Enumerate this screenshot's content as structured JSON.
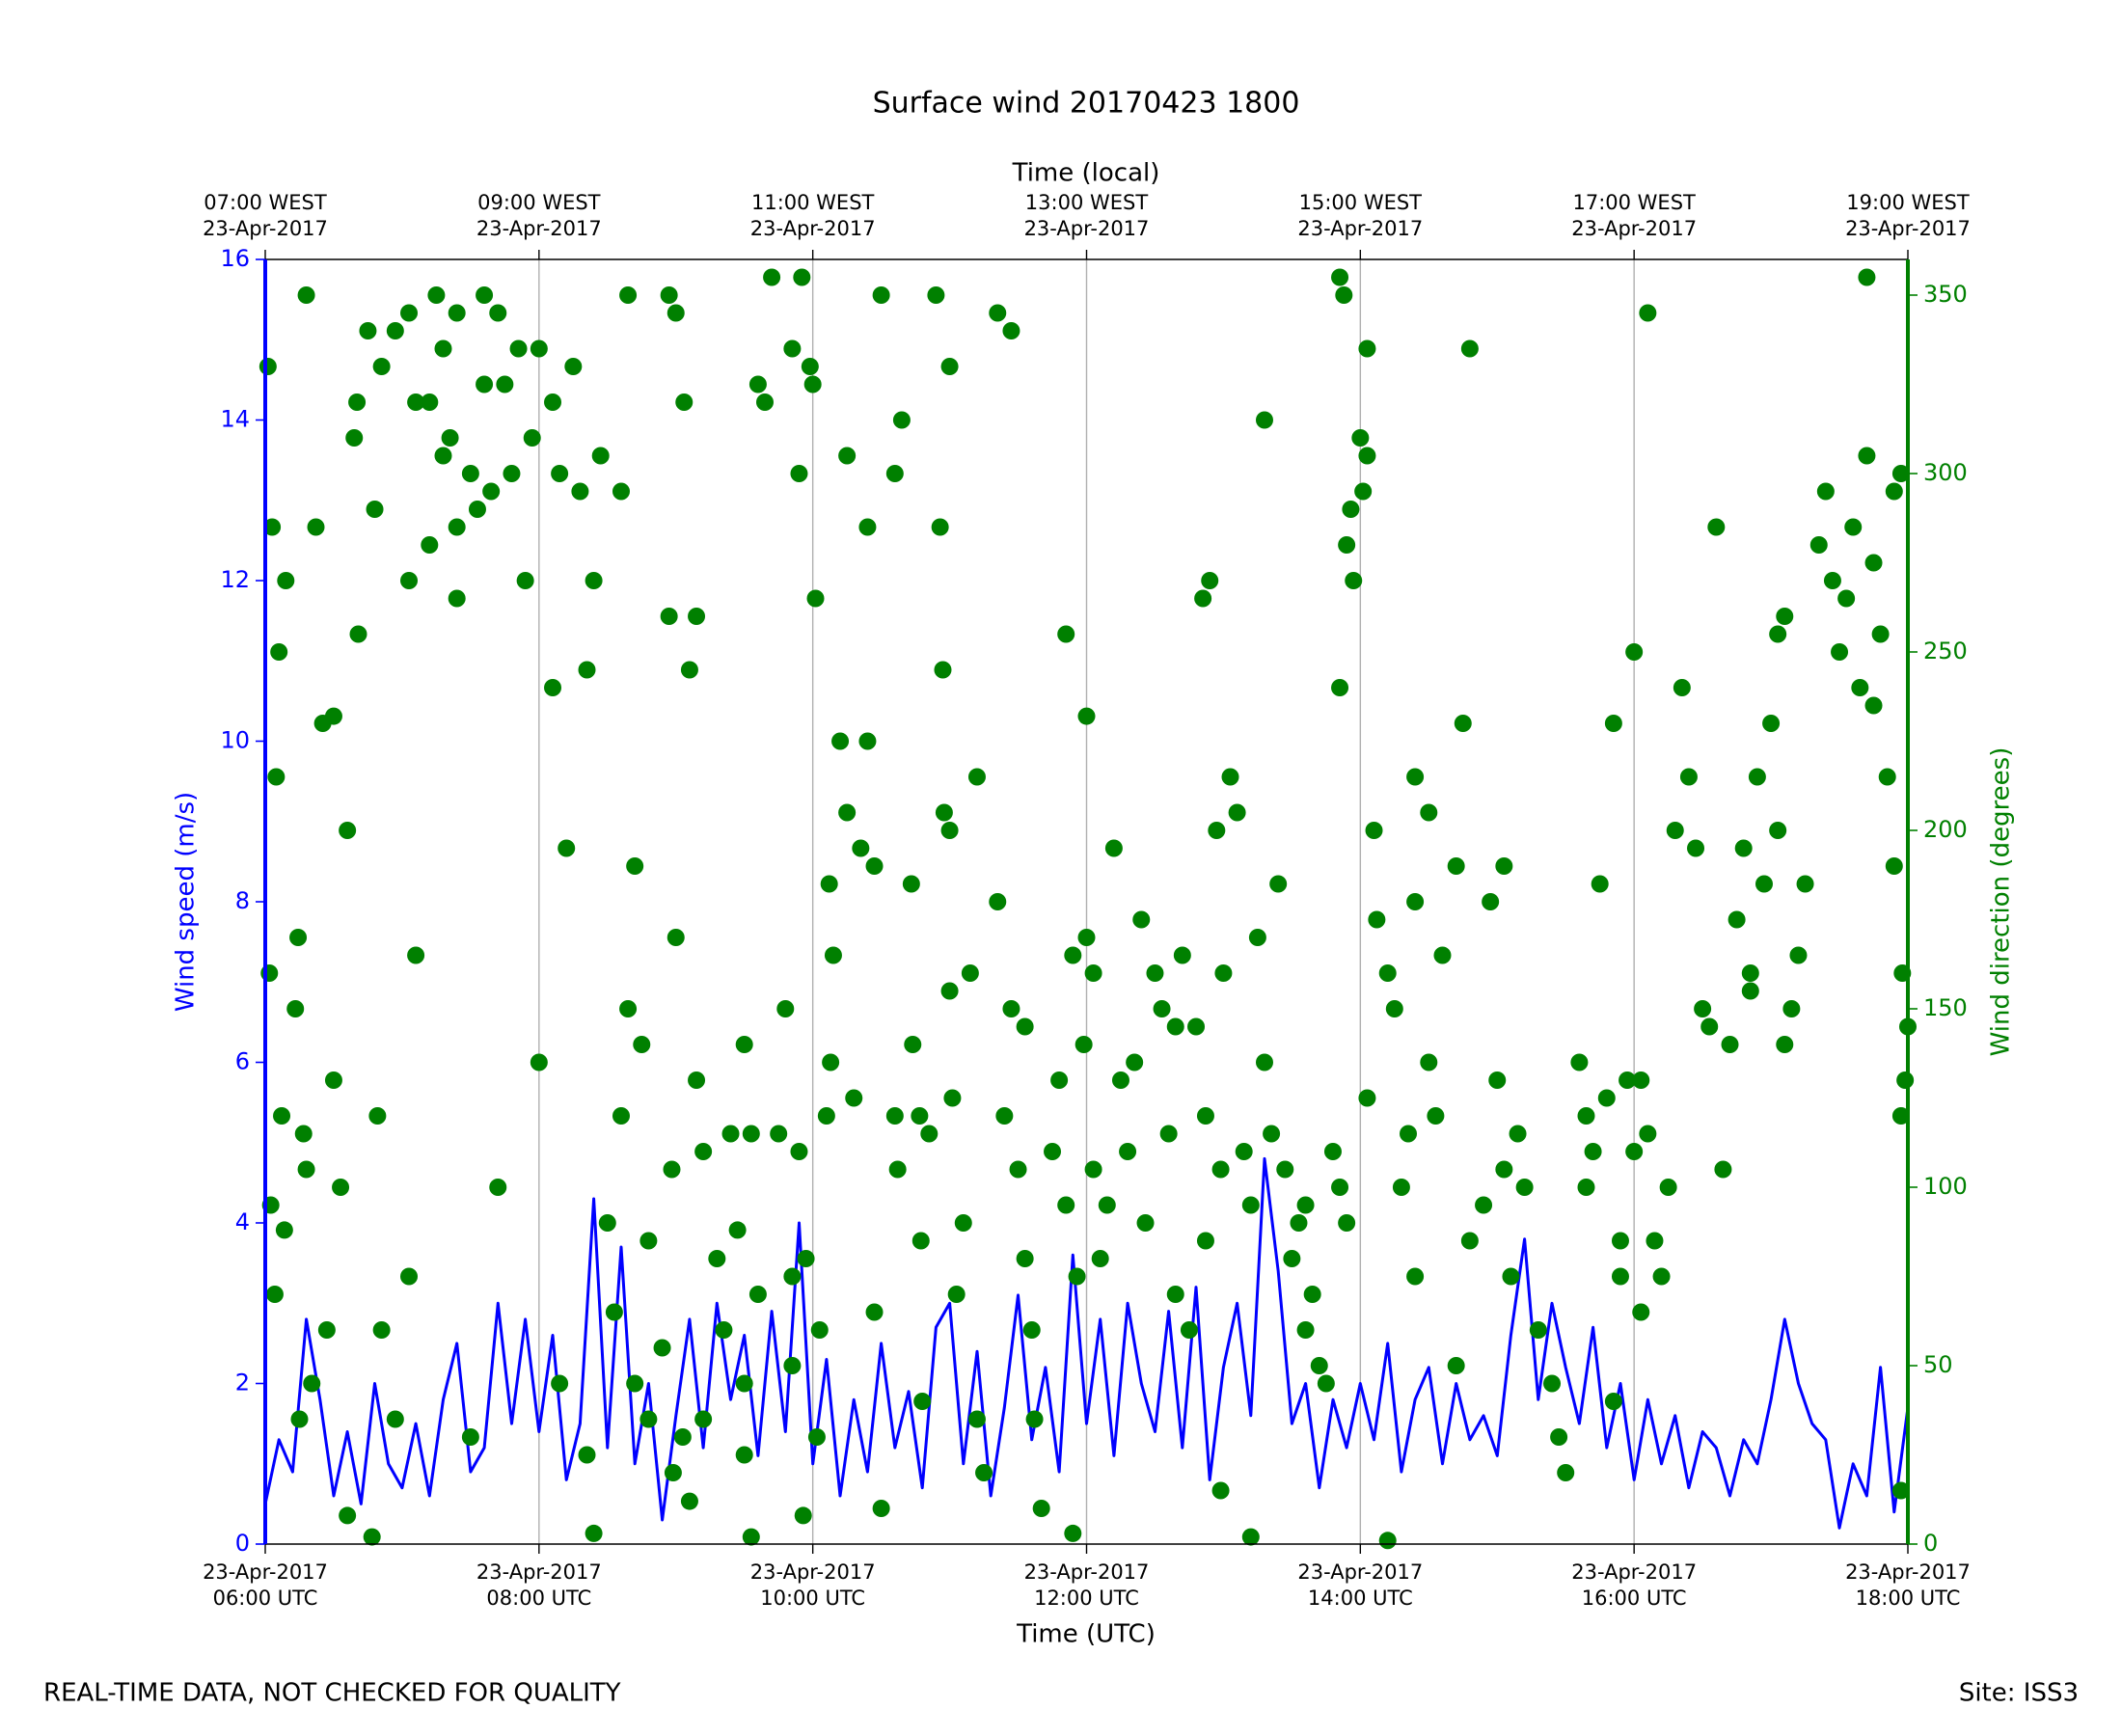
{
  "chart_data": {
    "type": "line",
    "title": "Surface wind 20170423 1800",
    "x2label": "Time (local)",
    "xlabel": "Time (UTC)",
    "ylabel": "Wind speed (m/s)",
    "y2label": "Wind direction (degrees)",
    "footnote": "REAL-TIME DATA, NOT CHECKED FOR QUALITY",
    "site": "Site: ISS3",
    "xlim": [
      6,
      18
    ],
    "xticks": [
      {
        "value": 6,
        "label": [
          "23-Apr-2017",
          "06:00 UTC"
        ]
      },
      {
        "value": 8,
        "label": [
          "23-Apr-2017",
          "08:00 UTC"
        ]
      },
      {
        "value": 10,
        "label": [
          "23-Apr-2017",
          "10:00 UTC"
        ]
      },
      {
        "value": 12,
        "label": [
          "23-Apr-2017",
          "12:00 UTC"
        ]
      },
      {
        "value": 14,
        "label": [
          "23-Apr-2017",
          "14:00 UTC"
        ]
      },
      {
        "value": 16,
        "label": [
          "23-Apr-2017",
          "16:00 UTC"
        ]
      },
      {
        "value": 18,
        "label": [
          "23-Apr-2017",
          "18:00 UTC"
        ]
      }
    ],
    "x2ticks": [
      {
        "value": 6,
        "label": [
          "07:00 WEST",
          "23-Apr-2017"
        ]
      },
      {
        "value": 8,
        "label": [
          "09:00 WEST",
          "23-Apr-2017"
        ]
      },
      {
        "value": 10,
        "label": [
          "11:00 WEST",
          "23-Apr-2017"
        ]
      },
      {
        "value": 12,
        "label": [
          "13:00 WEST",
          "23-Apr-2017"
        ]
      },
      {
        "value": 14,
        "label": [
          "15:00 WEST",
          "23-Apr-2017"
        ]
      },
      {
        "value": 16,
        "label": [
          "17:00 WEST",
          "23-Apr-2017"
        ]
      },
      {
        "value": 18,
        "label": [
          "19:00 WEST",
          "23-Apr-2017"
        ]
      }
    ],
    "ylim": [
      0,
      16
    ],
    "yticks": [
      0,
      2,
      4,
      6,
      8,
      10,
      12,
      14,
      16
    ],
    "y2lim": [
      0,
      360
    ],
    "y2ticks": [
      0,
      50,
      100,
      150,
      200,
      250,
      300,
      350
    ],
    "grid": "x",
    "ycolor": "#0000ff",
    "y2color": "#008000",
    "series": [
      {
        "type": "line",
        "color": "#0000ff",
        "x": [
          6,
          6.1,
          6.2,
          6.3,
          6.4,
          6.5,
          6.6,
          6.7,
          6.8,
          6.9,
          7,
          7.1,
          7.2,
          7.3,
          7.4,
          7.5,
          7.6,
          7.7,
          7.8,
          7.9,
          8,
          8.1,
          8.2,
          8.3,
          8.4,
          8.5,
          8.6,
          8.7,
          8.8,
          8.9,
          9,
          9.1,
          9.2,
          9.3,
          9.4,
          9.5,
          9.6,
          9.7,
          9.8,
          9.9,
          10,
          10.1,
          10.2,
          10.3,
          10.4,
          10.5,
          10.6,
          10.7,
          10.8,
          10.9,
          11,
          11.1,
          11.2,
          11.3,
          11.4,
          11.5,
          11.6,
          11.7,
          11.8,
          11.9,
          12,
          12.1,
          12.2,
          12.3,
          12.4,
          12.5,
          12.6,
          12.7,
          12.8,
          12.9,
          13,
          13.1,
          13.2,
          13.3,
          13.4,
          13.5,
          13.6,
          13.7,
          13.8,
          13.9,
          14,
          14.1,
          14.2,
          14.3,
          14.4,
          14.5,
          14.6,
          14.7,
          14.8,
          14.9,
          15,
          15.1,
          15.2,
          15.3,
          15.4,
          15.5,
          15.6,
          15.7,
          15.8,
          15.9,
          16,
          16.1,
          16.2,
          16.3,
          16.4,
          16.5,
          16.6,
          16.7,
          16.8,
          16.9,
          17,
          17.1,
          17.2,
          17.3,
          17.4,
          17.5,
          17.6,
          17.7,
          17.8,
          17.9,
          18
        ],
        "values": [
          0.5,
          1.3,
          0.9,
          2.8,
          1.8,
          0.6,
          1.4,
          0.5,
          2.0,
          1.0,
          0.7,
          1.5,
          0.6,
          1.8,
          2.5,
          0.9,
          1.2,
          3.0,
          1.5,
          2.8,
          1.4,
          2.6,
          0.8,
          1.5,
          4.3,
          1.2,
          3.7,
          1.0,
          2.0,
          0.3,
          1.6,
          2.8,
          1.2,
          3.0,
          1.8,
          2.6,
          1.1,
          2.9,
          1.4,
          4.0,
          1.0,
          2.3,
          0.6,
          1.8,
          0.9,
          2.5,
          1.2,
          1.9,
          0.7,
          2.7,
          3.0,
          1.0,
          2.4,
          0.6,
          1.7,
          3.1,
          1.3,
          2.2,
          0.9,
          3.6,
          1.5,
          2.8,
          1.1,
          3.0,
          2.0,
          1.4,
          2.9,
          1.2,
          3.2,
          0.8,
          2.2,
          3.0,
          1.6,
          4.8,
          3.4,
          1.5,
          2.0,
          0.7,
          1.8,
          1.2,
          2.0,
          1.3,
          2.5,
          0.9,
          1.8,
          2.2,
          1.0,
          2.0,
          1.3,
          1.6,
          1.1,
          2.6,
          3.8,
          1.8,
          3.0,
          2.2,
          1.5,
          2.7,
          1.2,
          2.0,
          0.8,
          1.8,
          1.0,
          1.6,
          0.7,
          1.4,
          1.2,
          0.6,
          1.3,
          1.0,
          1.8,
          2.8,
          2.0,
          1.5,
          1.3,
          0.2,
          1.0,
          0.6,
          2.2,
          0.4,
          1.7
        ]
      },
      {
        "type": "scatter",
        "color": "#008000",
        "axis": "y2",
        "x": [
          6.02,
          6.05,
          6.03,
          6.04,
          6.08,
          6.1,
          6.15,
          6.12,
          6.14,
          6.07,
          6.25,
          6.24,
          6.22,
          6.28,
          6.3,
          6.34,
          6.3,
          6.37,
          6.42,
          6.5,
          6.5,
          6.55,
          6.45,
          6.6,
          6.6,
          6.65,
          6.67,
          6.68,
          6.75,
          6.8,
          6.82,
          6.85,
          6.78,
          6.85,
          6.95,
          7.05,
          7.1,
          7.2,
          7.25,
          7.3,
          7.35,
          7.4,
          7.5,
          7.55,
          7.6,
          7.7,
          7.8,
          7.9,
          7.95,
          7.5,
          7.7,
          7.4,
          7.4,
          7.2,
          7.05,
          7.1,
          7.05,
          6.95,
          7.85,
          7.75,
          7.65,
          7.3,
          7.6,
          8.0,
          8.1,
          8.15,
          8.1,
          8.0,
          8.15,
          8.25,
          8.3,
          8.4,
          8.2,
          8.35,
          8.45,
          8.35,
          8.4,
          8.5,
          8.55,
          8.6,
          8.7,
          8.8,
          8.7,
          8.75,
          8.65,
          8.6,
          8.65,
          8.8,
          8.95,
          8.95,
          8.97,
          8.9,
          8.98,
          9.05,
          9.0,
          9.06,
          9.1,
          9.15,
          9.15,
          9.0,
          9.1,
          9.2,
          9.2,
          9.3,
          9.35,
          9.4,
          9.45,
          9.5,
          9.5,
          9.55,
          9.6,
          9.6,
          9.65,
          9.7,
          9.75,
          9.85,
          9.8,
          9.85,
          9.9,
          9.92,
          9.5,
          9.55,
          9.93,
          9.95,
          9.9,
          9.85,
          9.98,
          10.0,
          10.02,
          10.03,
          10.05,
          10.1,
          10.12,
          10.13,
          10.15,
          10.2,
          10.25,
          10.25,
          10.3,
          10.35,
          10.4,
          10.4,
          10.45,
          10.5,
          10.45,
          10.5,
          10.6,
          10.62,
          10.6,
          10.65,
          10.72,
          10.73,
          10.78,
          10.79,
          10.8,
          10.85,
          10.9,
          10.93,
          10.95,
          10.96,
          11.0,
          11.0,
          11.02,
          11.1,
          11.05,
          11.0,
          11.15,
          11.2,
          11.2,
          11.25,
          11.35,
          11.45,
          11.35,
          11.45,
          11.4,
          11.5,
          11.55,
          11.55,
          11.6,
          11.62,
          11.67,
          11.75,
          11.8,
          11.85,
          11.9,
          11.85,
          11.9,
          11.93,
          11.98,
          12.0,
          12.0,
          12.05,
          12.05,
          12.1,
          12.15,
          12.2,
          12.25,
          12.3,
          12.35,
          12.4,
          12.43,
          12.5,
          12.55,
          12.6,
          12.65,
          12.65,
          12.7,
          12.75,
          12.8,
          12.87,
          12.87,
          12.85,
          12.95,
          12.9,
          12.98,
          12.98,
          13.0,
          13.05,
          13.1,
          13.15,
          13.2,
          13.2,
          13.25,
          13.3,
          13.35,
          13.3,
          13.4,
          13.45,
          13.5,
          13.55,
          13.6,
          13.6,
          13.7,
          13.65,
          13.75,
          13.8,
          13.85,
          13.9,
          13.85,
          13.88,
          13.9,
          13.93,
          13.95,
          13.85,
          14.0,
          14.02,
          14.05,
          14.05,
          14.2,
          14.05,
          14.1,
          14.12,
          14.2,
          14.3,
          14.25,
          14.35,
          14.4,
          14.4,
          14.4,
          14.5,
          14.5,
          14.55,
          14.6,
          14.7,
          14.75,
          14.8,
          14.7,
          14.8,
          14.9,
          14.95,
          15.0,
          15.05,
          15.1,
          15.05,
          15.15,
          15.2,
          15.3,
          15.4,
          15.45,
          15.5,
          15.6,
          15.65,
          15.7,
          15.65,
          15.75,
          15.8,
          15.9,
          15.95,
          16.0,
          16.05,
          15.9,
          16.05,
          15.85,
          15.85,
          16.0,
          16.1,
          16.1,
          16.15,
          16.2,
          16.25,
          16.3,
          16.35,
          16.4,
          16.45,
          16.5,
          16.55,
          16.6,
          16.65,
          16.7,
          16.75,
          16.85,
          16.8,
          16.9,
          16.95,
          16.85,
          17.0,
          17.05,
          17.1,
          17.05,
          17.1,
          17.15,
          17.2,
          17.25,
          17.35,
          17.4,
          17.45,
          17.5,
          17.55,
          17.6,
          17.65,
          17.7,
          17.7,
          17.75,
          17.75,
          17.8,
          17.85,
          17.9,
          17.9,
          17.95,
          17.95,
          18.0,
          17.98,
          17.95,
          17.96
        ],
        "values": [
          330,
          285,
          160,
          95,
          215,
          250,
          270,
          120,
          88,
          70,
          35,
          170,
          150,
          115,
          105,
          45,
          350,
          285,
          230,
          232,
          130,
          100,
          60,
          8,
          200,
          310,
          320,
          255,
          340,
          290,
          120,
          60,
          2,
          330,
          340,
          345,
          320,
          280,
          350,
          335,
          310,
          345,
          300,
          290,
          325,
          345,
          300,
          270,
          310,
          30,
          100,
          285,
          265,
          320,
          270,
          165,
          75,
          35,
          335,
          325,
          295,
          305,
          350,
          335,
          320,
          300,
          240,
          135,
          45,
          330,
          295,
          270,
          195,
          245,
          305,
          25,
          3,
          90,
          65,
          120,
          45,
          35,
          190,
          140,
          150,
          295,
          350,
          85,
          260,
          350,
          105,
          55,
          20,
          30,
          345,
          320,
          245,
          260,
          130,
          170,
          12,
          35,
          110,
          80,
          60,
          115,
          88,
          45,
          140,
          115,
          70,
          325,
          320,
          355,
          115,
          75,
          150,
          335,
          300,
          355,
          25,
          2,
          8,
          80,
          110,
          50,
          330,
          325,
          265,
          30,
          60,
          120,
          185,
          135,
          165,
          225,
          205,
          305,
          125,
          195,
          285,
          225,
          190,
          10,
          65,
          350,
          120,
          105,
          300,
          315,
          185,
          140,
          120,
          85,
          40,
          115,
          350,
          285,
          245,
          205,
          200,
          155,
          125,
          90,
          70,
          330,
          160,
          215,
          35,
          20,
          345,
          340,
          180,
          150,
          120,
          105,
          145,
          80,
          60,
          35,
          10,
          110,
          130,
          95,
          165,
          255,
          3,
          75,
          140,
          170,
          232,
          105,
          160,
          80,
          95,
          195,
          130,
          110,
          135,
          175,
          90,
          160,
          150,
          115,
          145,
          70,
          165,
          60,
          145,
          120,
          85,
          265,
          200,
          270,
          105,
          15,
          160,
          215,
          205,
          110,
          95,
          2,
          170,
          135,
          115,
          315,
          185,
          105,
          80,
          90,
          95,
          60,
          50,
          70,
          45,
          110,
          100,
          90,
          355,
          350,
          280,
          290,
          270,
          240,
          310,
          295,
          305,
          335,
          1,
          125,
          200,
          175,
          160,
          100,
          150,
          115,
          75,
          180,
          215,
          205,
          135,
          120,
          165,
          190,
          230,
          335,
          50,
          85,
          95,
          180,
          130,
          105,
          75,
          190,
          115,
          100,
          60,
          45,
          30,
          20,
          135,
          120,
          110,
          100,
          185,
          125,
          85,
          130,
          110,
          65,
          75,
          130,
          40,
          230,
          250,
          115,
          345,
          85,
          75,
          100,
          200,
          240,
          215,
          195,
          150,
          145,
          285,
          105,
          140,
          175,
          160,
          195,
          215,
          185,
          155,
          230,
          255,
          260,
          200,
          140,
          150,
          165,
          185,
          280,
          295,
          270,
          250,
          265,
          285,
          240,
          305,
          355,
          235,
          275,
          255,
          215,
          190,
          295,
          300,
          15,
          145,
          130,
          120,
          160
        ]
      }
    ]
  }
}
